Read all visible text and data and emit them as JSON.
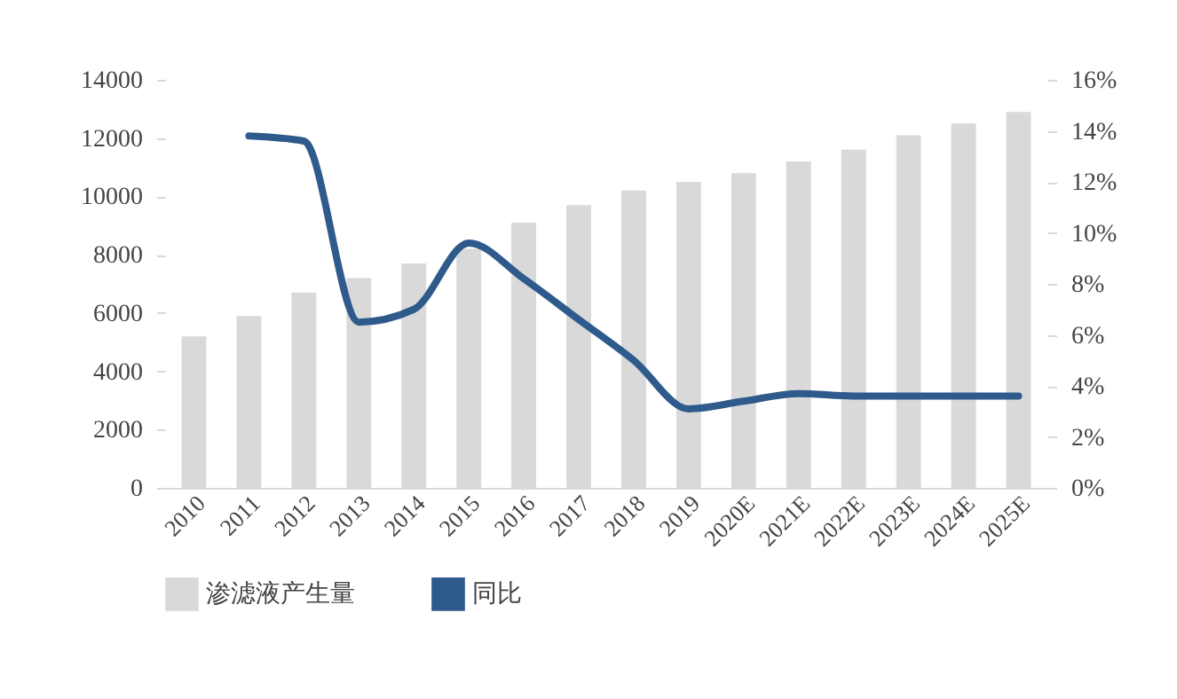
{
  "chart_data": {
    "type": "bar",
    "categories": [
      "2010",
      "2011",
      "2012",
      "2013",
      "2014",
      "2015",
      "2016",
      "2017",
      "2018",
      "2019",
      "2020E",
      "2021E",
      "2022E",
      "2023E",
      "2024E",
      "2025E"
    ],
    "series": [
      {
        "name": "渗滤液产生量",
        "color": "#d9d9d9",
        "values": [
          5200,
          5900,
          6700,
          7200,
          7700,
          8200,
          9100,
          9700,
          10200,
          10500,
          10800,
          11200,
          11600,
          12100,
          12500,
          12900
        ]
      },
      {
        "name": "同比",
        "type": "line",
        "axis": "y2",
        "color": "#2e5a8c",
        "values": [
          null,
          13.8,
          13.6,
          6.5,
          7.0,
          9.6,
          8.2,
          6.6,
          5.0,
          3.1,
          3.4,
          3.7,
          3.6,
          3.6,
          3.6,
          3.6
        ]
      }
    ],
    "ylim": [
      0,
      14000
    ],
    "yticks": [
      0,
      2000,
      4000,
      6000,
      8000,
      10000,
      12000,
      14000
    ],
    "y2lim": [
      0,
      16
    ],
    "y2ticks": [
      {
        "value": 0,
        "label": "0%"
      },
      {
        "value": 2,
        "label": "2%"
      },
      {
        "value": 4,
        "label": "4%"
      },
      {
        "value": 6,
        "label": "6%"
      },
      {
        "value": 8,
        "label": "8%"
      },
      {
        "value": 10,
        "label": "10%"
      },
      {
        "value": 12,
        "label": "12%"
      },
      {
        "value": 14,
        "label": "14%"
      },
      {
        "value": 16,
        "label": "16%"
      }
    ],
    "grid": false,
    "legend": "bottom"
  }
}
